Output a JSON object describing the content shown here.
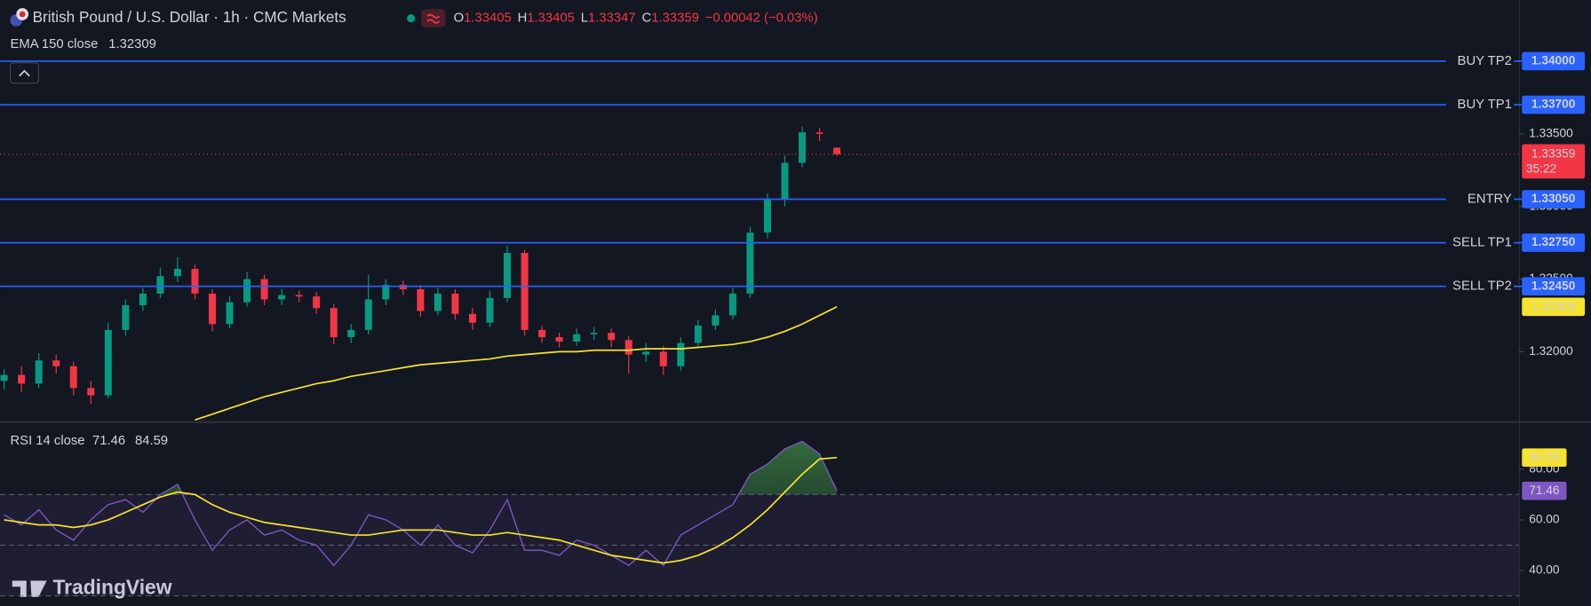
{
  "header": {
    "title": "British Pound / U.S. Dollar · 1h · CMC Markets",
    "ohlc_labels": [
      "O",
      "H",
      "L",
      "C"
    ],
    "change": "−0.00042 (−0.03%)"
  },
  "brand": "TradingView",
  "chart_data": [
    {
      "type": "candlestick",
      "open": [
        1.318,
        1.3184,
        1.3178,
        1.3194,
        1.319,
        1.3175,
        1.317,
        1.3215,
        1.3232,
        1.324,
        1.3252,
        1.3257,
        1.324,
        1.3219,
        1.3234,
        1.325,
        1.3236,
        1.3239,
        1.3238,
        1.323,
        1.321,
        1.3215,
        1.3236,
        1.3246,
        1.3243,
        1.3228,
        1.324,
        1.3226,
        1.322,
        1.3237,
        1.3268,
        1.3215,
        1.321,
        1.3207,
        1.3212,
        1.3213,
        1.3208,
        1.3198,
        1.32,
        1.319,
        1.3206,
        1.3218,
        1.3225,
        1.324,
        1.3282,
        1.3305,
        1.333,
        1.3351,
        1.33405
      ],
      "high": [
        1.3188,
        1.319,
        1.3199,
        1.3198,
        1.3193,
        1.318,
        1.322,
        1.3236,
        1.3244,
        1.3258,
        1.3265,
        1.326,
        1.3243,
        1.3238,
        1.3255,
        1.3253,
        1.3243,
        1.3242,
        1.3241,
        1.3233,
        1.3219,
        1.3253,
        1.325,
        1.3249,
        1.3246,
        1.3244,
        1.3243,
        1.323,
        1.3242,
        1.3273,
        1.327,
        1.3218,
        1.3213,
        1.3216,
        1.3217,
        1.3216,
        1.3211,
        1.3206,
        1.3204,
        1.321,
        1.3222,
        1.3229,
        1.3244,
        1.3286,
        1.3309,
        1.3335,
        1.3355,
        1.3354,
        1.33405
      ],
      "low": [
        1.3174,
        1.3172,
        1.3175,
        1.3185,
        1.317,
        1.3164,
        1.3168,
        1.3211,
        1.3228,
        1.3237,
        1.3248,
        1.3236,
        1.3214,
        1.3216,
        1.3231,
        1.3232,
        1.3232,
        1.3234,
        1.3226,
        1.3205,
        1.3206,
        1.3212,
        1.3232,
        1.3239,
        1.3224,
        1.3225,
        1.3222,
        1.3215,
        1.3217,
        1.3234,
        1.3211,
        1.3206,
        1.3203,
        1.3204,
        1.3208,
        1.3203,
        1.3185,
        1.3193,
        1.3184,
        1.3187,
        1.3203,
        1.3215,
        1.3222,
        1.3237,
        1.3278,
        1.33,
        1.3327,
        1.3345,
        1.33347
      ],
      "close": [
        1.3184,
        1.3178,
        1.3194,
        1.319,
        1.3175,
        1.317,
        1.3215,
        1.3232,
        1.324,
        1.3252,
        1.3257,
        1.324,
        1.3219,
        1.3234,
        1.325,
        1.3236,
        1.3239,
        1.3238,
        1.323,
        1.321,
        1.3215,
        1.3236,
        1.3246,
        1.3243,
        1.3228,
        1.324,
        1.3226,
        1.322,
        1.3237,
        1.3268,
        1.3215,
        1.321,
        1.3207,
        1.3212,
        1.3213,
        1.3208,
        1.3198,
        1.32,
        1.319,
        1.3206,
        1.3218,
        1.3225,
        1.324,
        1.3282,
        1.3305,
        1.333,
        1.3351,
        1.335,
        1.33359
      ],
      "up_color": "#089981",
      "down_color": "#f23645",
      "ylim": [
        1.31526,
        1.34421
      ],
      "yticks": [
        {
          "value": 1.32,
          "label": "1.32000"
        },
        {
          "value": 1.325,
          "label": "1.32500"
        },
        {
          "value": 1.33,
          "label": "1.33000"
        },
        {
          "value": 1.335,
          "label": "1.33500"
        }
      ],
      "series": [
        {
          "name": "EMA 150 close",
          "color": "#f7e32f",
          "values": [
            null,
            null,
            null,
            null,
            null,
            null,
            null,
            null,
            null,
            null,
            null,
            1.3153,
            1.3157,
            1.3161,
            1.3165,
            1.3169,
            1.3172,
            1.3175,
            1.3178,
            1.318,
            1.3183,
            1.3185,
            1.3187,
            1.3189,
            1.3191,
            1.3192,
            1.3193,
            1.3194,
            1.3195,
            1.3197,
            1.3198,
            1.3199,
            1.32,
            1.32,
            1.3201,
            1.3201,
            1.3201,
            1.3202,
            1.3202,
            1.3202,
            1.3203,
            1.3204,
            1.3205,
            1.3207,
            1.321,
            1.3214,
            1.3219,
            1.3225,
            1.32309
          ]
        }
      ],
      "levels": [
        {
          "name": "BUY TP2",
          "value": 1.34,
          "label": "1.34000",
          "color": "#4caf50"
        },
        {
          "name": "BUY TP1",
          "value": 1.337,
          "label": "1.33700",
          "color": "#4caf50"
        },
        {
          "name": "ENTRY",
          "value": 1.3305,
          "label": "1.33050",
          "color": "#ffeb3b"
        },
        {
          "name": "SELL TP1",
          "value": 1.3275,
          "label": "1.32750",
          "color": "#f7525f"
        },
        {
          "name": "SELL TP2",
          "value": 1.3245,
          "label": "1.32450",
          "color": "#f7525f"
        }
      ],
      "level_line_color": "#2962ff",
      "countdown": "35:22"
    },
    {
      "type": "line",
      "series": [
        {
          "name": "RSI 14 close",
          "color": "#7e57c2",
          "values": [
            62,
            58,
            64,
            56,
            52,
            60,
            66,
            68,
            63,
            70,
            74,
            60,
            48,
            56,
            60,
            54,
            56,
            52,
            50,
            42,
            50,
            62,
            60,
            56,
            50,
            58,
            50,
            47,
            56,
            68,
            48,
            48,
            46,
            52,
            50,
            46,
            42,
            48,
            42,
            54,
            58,
            62,
            66,
            78,
            82,
            88,
            91,
            86,
            71.46
          ]
        },
        {
          "color": "#f7e32f",
          "values": [
            60,
            59,
            58,
            58,
            57,
            58,
            60,
            63,
            66,
            69,
            71,
            70,
            66,
            63,
            61,
            59,
            58,
            57,
            56,
            55,
            54,
            54,
            55,
            56,
            56,
            56,
            55,
            54,
            54,
            55,
            54,
            53,
            52,
            50,
            48,
            46,
            45,
            44,
            43,
            44,
            46,
            49,
            53,
            58,
            64,
            71,
            78,
            84,
            84.59
          ]
        }
      ],
      "ylim": [
        26,
        98
      ],
      "yticks": [
        {
          "value": 40,
          "label": "40.00"
        },
        {
          "value": 60,
          "label": "60.00"
        },
        {
          "value": 80,
          "label": "80.00"
        }
      ],
      "guides": [
        70,
        50,
        30
      ]
    }
  ]
}
